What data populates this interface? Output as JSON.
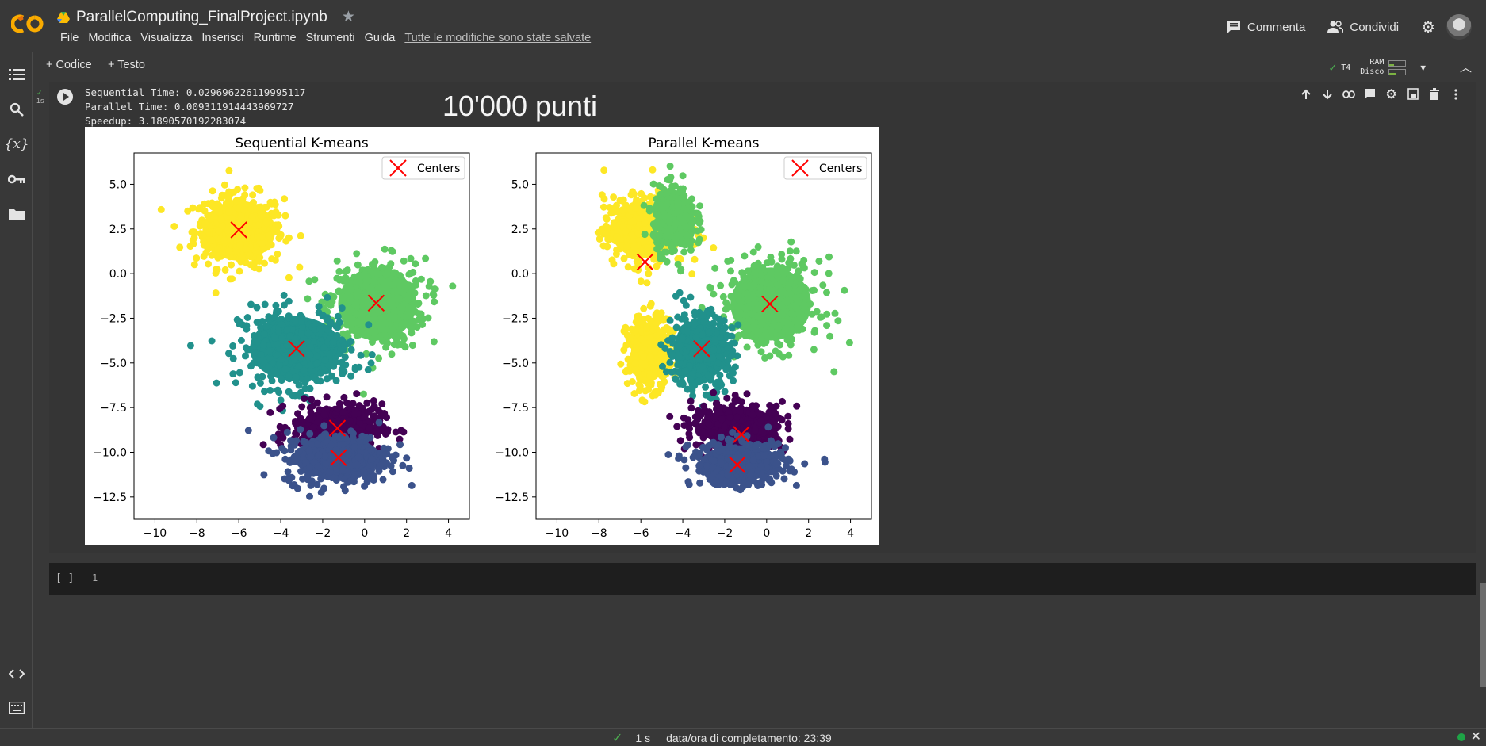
{
  "header": {
    "filename": "ParallelComputing_FinalProject.ipynb",
    "menu": [
      "File",
      "Modifica",
      "Visualizza",
      "Inserisci",
      "Runtime",
      "Strumenti",
      "Guida"
    ],
    "saved_status": "Tutte le modifiche sono state salvate",
    "comment_label": "Commenta",
    "share_label": "Condividi"
  },
  "toolbar": {
    "code_label": "+ Codice",
    "text_label": "+ Testo",
    "runtime": "T4",
    "ram_label": "RAM",
    "disk_label": "Disco"
  },
  "cell": {
    "exec_time": "1s",
    "output_lines": [
      "Sequential Time: 0.029696226119995117",
      "Parallel Time: 0.009311914443969727",
      "Speedup: 3.1890570192283074"
    ],
    "figure_title": "10'000 punti"
  },
  "empty_cell": {
    "bracket": "[ ]",
    "line_number": "1"
  },
  "statusbar": {
    "duration": "1 s",
    "completed": "data/ora di completamento: 23:39"
  },
  "colors": {
    "yellow": "#fde725",
    "green": "#5ec962",
    "teal": "#21918c",
    "blue": "#3b528b",
    "purple": "#440154",
    "center": "#ff0000"
  },
  "chart_data": [
    {
      "type": "scatter",
      "title": "Sequential K-means",
      "legend": "Centers",
      "legend_position": "top-right",
      "xlim": [
        -11,
        5
      ],
      "ylim": [
        -13.75,
        6.75
      ],
      "xticks": [
        "−10",
        "−8",
        "−6",
        "−4",
        "−2",
        "0",
        "2",
        "4"
      ],
      "yticks": [
        "5.0",
        "2.5",
        "0.0",
        "−2.5",
        "−5.0",
        "−7.5",
        "−10.0",
        "−12.5"
      ],
      "clusters": [
        {
          "color": "yellow",
          "cx": -6,
          "cy": 2.4,
          "rx": 2.8,
          "ry": 2.7
        },
        {
          "color": "green",
          "cx": 0.6,
          "cy": -1.7,
          "rx": 3.0,
          "ry": 3.3
        },
        {
          "color": "teal",
          "cx": -3.3,
          "cy": -4.2,
          "rx": 3.5,
          "ry": 2.9
        },
        {
          "color": "purple",
          "cx": -1.3,
          "cy": -8.6,
          "rx": 2.8,
          "ry": 1.7
        },
        {
          "color": "blue",
          "cx": -1.3,
          "cy": -10.3,
          "rx": 3.3,
          "ry": 1.9
        }
      ],
      "centers": [
        [
          -6.0,
          2.45
        ],
        [
          0.55,
          -1.65
        ],
        [
          -3.25,
          -4.2
        ],
        [
          -1.3,
          -8.65
        ],
        [
          -1.25,
          -10.3
        ]
      ]
    },
    {
      "type": "scatter",
      "title": "Parallel K-means",
      "legend": "Centers",
      "legend_position": "top-right",
      "xlim": [
        -11,
        5
      ],
      "ylim": [
        -13.75,
        6.75
      ],
      "xticks": [
        "−10",
        "−8",
        "−6",
        "−4",
        "−2",
        "0",
        "2",
        "4"
      ],
      "yticks": [
        "5.0",
        "2.5",
        "0.0",
        "−2.5",
        "−5.0",
        "−7.5",
        "−10.0",
        "−12.5"
      ],
      "clusters": [
        {
          "color": "yellow",
          "cx": -5.8,
          "cy": 2.4,
          "rx": 2.6,
          "ry": 2.5
        },
        {
          "color": "green",
          "cx": -4.4,
          "cy": 3.0,
          "rx": 1.3,
          "ry": 2.4
        },
        {
          "color": "green",
          "cx": 0.2,
          "cy": -1.7,
          "rx": 3.1,
          "ry": 3.3
        },
        {
          "color": "yellow",
          "cx": -5.6,
          "cy": -4.4,
          "rx": 1.4,
          "ry": 2.6
        },
        {
          "color": "teal",
          "cx": -3.2,
          "cy": -4.3,
          "rx": 2.0,
          "ry": 2.8
        },
        {
          "color": "purple",
          "cx": -1.3,
          "cy": -8.6,
          "rx": 2.9,
          "ry": 1.8
        },
        {
          "color": "blue",
          "cx": -1.3,
          "cy": -10.6,
          "rx": 3.0,
          "ry": 1.6
        }
      ],
      "centers": [
        [
          -5.8,
          0.65
        ],
        [
          0.15,
          -1.7
        ],
        [
          -3.1,
          -4.2
        ],
        [
          -1.2,
          -9.0
        ],
        [
          -1.4,
          -10.7
        ]
      ]
    }
  ]
}
